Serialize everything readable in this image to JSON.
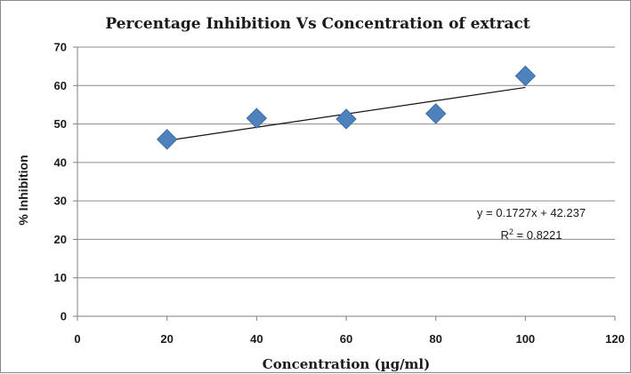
{
  "chart_data": {
    "type": "scatter",
    "title": "Percentage Inhibition Vs Concentration of extract",
    "xlabel": "Concentration (µg/ml)",
    "ylabel": "% Inhibition",
    "xlim": [
      0,
      120
    ],
    "ylim": [
      0,
      70
    ],
    "xticks": [
      0,
      20,
      40,
      60,
      80,
      100,
      120
    ],
    "yticks": [
      0,
      10,
      20,
      30,
      40,
      50,
      60,
      70
    ],
    "grid": "horizontal",
    "legend": "none",
    "marker": "diamond",
    "marker_color": "#4f81bd",
    "points": [
      {
        "x": 20,
        "y": 46.0
      },
      {
        "x": 40,
        "y": 51.5
      },
      {
        "x": 60,
        "y": 51.3
      },
      {
        "x": 80,
        "y": 52.7
      },
      {
        "x": 100,
        "y": 62.5
      }
    ],
    "trendline": {
      "type": "linear",
      "slope": 0.1727,
      "intercept": 42.237,
      "x_range": [
        20,
        100
      ],
      "equation_label": "y = 0.1727x + 42.237",
      "r2_prefix": "R",
      "r2_sup": "2",
      "r2_value": " = 0.8221"
    }
  }
}
